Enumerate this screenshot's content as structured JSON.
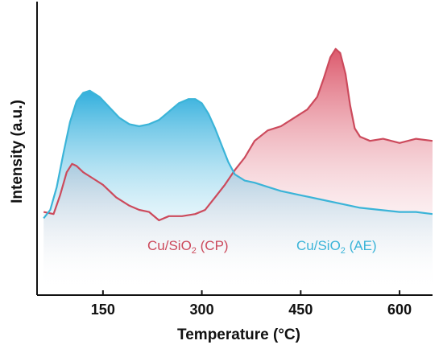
{
  "chart_data": {
    "type": "area",
    "xlabel": "Temperature (°C)",
    "ylabel": "Intensity (a.u.)",
    "xlim": [
      50,
      650
    ],
    "ylim": [
      0,
      1
    ],
    "x_ticks": [
      150,
      300,
      450,
      600
    ],
    "y_ticks_shown": false,
    "grid": false,
    "series": [
      {
        "name_parts": [
          "Cu/SiO",
          "2",
          " (CP)"
        ],
        "color": "#cc4a5c",
        "fill_from_color": "#d8465b",
        "points": [
          [
            60,
            0.14
          ],
          [
            75,
            0.13
          ],
          [
            85,
            0.22
          ],
          [
            95,
            0.33
          ],
          [
            103,
            0.37
          ],
          [
            110,
            0.36
          ],
          [
            120,
            0.33
          ],
          [
            135,
            0.3
          ],
          [
            150,
            0.27
          ],
          [
            170,
            0.21
          ],
          [
            190,
            0.17
          ],
          [
            205,
            0.15
          ],
          [
            220,
            0.14
          ],
          [
            235,
            0.1
          ],
          [
            250,
            0.12
          ],
          [
            270,
            0.12
          ],
          [
            290,
            0.13
          ],
          [
            305,
            0.15
          ],
          [
            320,
            0.21
          ],
          [
            335,
            0.27
          ],
          [
            350,
            0.34
          ],
          [
            365,
            0.4
          ],
          [
            380,
            0.48
          ],
          [
            400,
            0.53
          ],
          [
            420,
            0.55
          ],
          [
            440,
            0.59
          ],
          [
            460,
            0.63
          ],
          [
            475,
            0.69
          ],
          [
            485,
            0.78
          ],
          [
            495,
            0.88
          ],
          [
            503,
            0.92
          ],
          [
            510,
            0.9
          ],
          [
            518,
            0.8
          ],
          [
            525,
            0.65
          ],
          [
            532,
            0.54
          ],
          [
            540,
            0.5
          ],
          [
            555,
            0.48
          ],
          [
            575,
            0.49
          ],
          [
            600,
            0.47
          ],
          [
            625,
            0.49
          ],
          [
            650,
            0.48
          ]
        ]
      },
      {
        "name_parts": [
          "Cu/SiO",
          "2",
          " (AE)"
        ],
        "color": "#3bb4d8",
        "fill_from_color": "#1aa6d9",
        "points": [
          [
            60,
            0.11
          ],
          [
            70,
            0.15
          ],
          [
            80,
            0.26
          ],
          [
            90,
            0.42
          ],
          [
            100,
            0.57
          ],
          [
            110,
            0.67
          ],
          [
            120,
            0.71
          ],
          [
            130,
            0.72
          ],
          [
            145,
            0.69
          ],
          [
            160,
            0.64
          ],
          [
            175,
            0.59
          ],
          [
            190,
            0.56
          ],
          [
            205,
            0.55
          ],
          [
            220,
            0.56
          ],
          [
            235,
            0.58
          ],
          [
            250,
            0.62
          ],
          [
            265,
            0.66
          ],
          [
            280,
            0.68
          ],
          [
            290,
            0.68
          ],
          [
            300,
            0.66
          ],
          [
            310,
            0.61
          ],
          [
            320,
            0.54
          ],
          [
            330,
            0.46
          ],
          [
            340,
            0.38
          ],
          [
            350,
            0.32
          ],
          [
            365,
            0.29
          ],
          [
            380,
            0.28
          ],
          [
            400,
            0.26
          ],
          [
            420,
            0.24
          ],
          [
            450,
            0.22
          ],
          [
            480,
            0.2
          ],
          [
            510,
            0.18
          ],
          [
            540,
            0.16
          ],
          [
            570,
            0.15
          ],
          [
            600,
            0.14
          ],
          [
            625,
            0.14
          ],
          [
            650,
            0.13
          ]
        ]
      }
    ]
  }
}
